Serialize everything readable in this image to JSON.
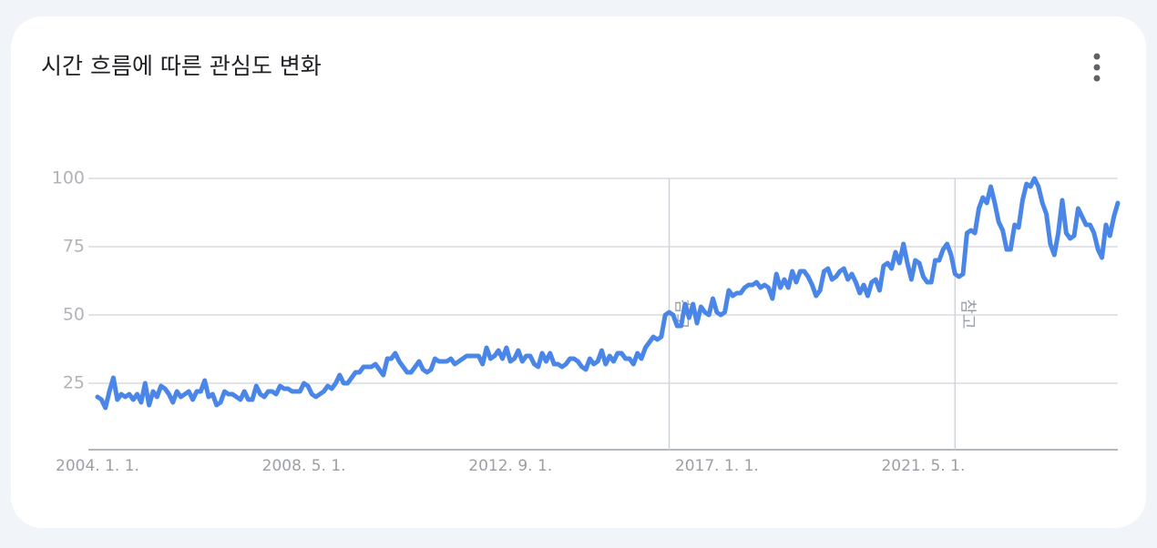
{
  "chart_data": {
    "type": "line",
    "title": "시간 흐름에 따른 관심도 변화",
    "categories": [
      "2004. 1. 1.",
      null,
      null,
      null,
      null,
      null,
      null,
      null,
      null,
      null,
      null,
      null,
      null,
      null,
      null,
      null,
      null,
      null,
      null,
      null,
      null,
      null,
      null,
      null,
      null,
      null,
      null,
      null,
      null,
      null,
      null,
      null,
      null,
      null,
      null,
      null,
      null,
      null,
      null,
      null,
      null,
      null,
      null,
      null,
      null,
      null,
      null,
      null,
      null,
      null,
      null,
      null,
      "2008. 5. 1.",
      null,
      null,
      null,
      null,
      null,
      null,
      null,
      null,
      null,
      null,
      null,
      null,
      null,
      null,
      null,
      null,
      null,
      null,
      null,
      null,
      null,
      null,
      null,
      null,
      null,
      null,
      null,
      null,
      null,
      null,
      null,
      null,
      null,
      null,
      null,
      null,
      null,
      null,
      null,
      null,
      null,
      null,
      null,
      null,
      null,
      null,
      null,
      null,
      null,
      null,
      null,
      "2012. 9. 1.",
      null,
      null,
      null,
      null,
      null,
      null,
      null,
      null,
      null,
      null,
      null,
      null,
      null,
      null,
      null,
      null,
      null,
      null,
      null,
      null,
      null,
      null,
      null,
      null,
      null,
      null,
      null,
      null,
      null,
      null,
      null,
      null,
      null,
      null,
      null,
      null,
      null,
      null,
      null,
      null,
      null,
      null,
      null,
      null,
      null,
      null,
      null,
      null,
      null,
      null,
      null,
      "2017. 1. 1.",
      null,
      null,
      null,
      null,
      null,
      null,
      null,
      null,
      null,
      null,
      null,
      null,
      null,
      null,
      null,
      null,
      null,
      null,
      null,
      null,
      null,
      null,
      null,
      null,
      null,
      null,
      null,
      null,
      null,
      null,
      null,
      null,
      null,
      null,
      null,
      null,
      null,
      null,
      null,
      null,
      null,
      null,
      null,
      null,
      null,
      null,
      null,
      null,
      null,
      null,
      null,
      "2021. 5. 1.",
      null,
      null,
      null,
      null,
      null,
      null,
      null,
      null,
      null,
      null,
      null,
      null,
      null,
      null,
      null,
      null,
      null,
      null,
      null,
      null,
      null,
      null,
      null,
      null,
      null,
      null,
      null,
      null,
      null,
      null,
      null,
      null,
      null,
      null,
      null,
      null,
      null,
      null,
      null,
      null,
      null,
      null,
      null,
      null,
      null,
      null,
      null,
      null,
      null
    ],
    "series": [
      {
        "name": "관심도",
        "color": "#4a86e8",
        "values": [
          20,
          19,
          16,
          22,
          27,
          19,
          21,
          20,
          21,
          19,
          21,
          18,
          25,
          17,
          22,
          20,
          24,
          23,
          21,
          18,
          22,
          20,
          21,
          22,
          19,
          22,
          22,
          26,
          20,
          21,
          17,
          18,
          22,
          21,
          21,
          20,
          19,
          22,
          19,
          19,
          24,
          21,
          20,
          22,
          22,
          21,
          24,
          23,
          23,
          22,
          22,
          22,
          25,
          24,
          21,
          20,
          21,
          22,
          24,
          23,
          25,
          28,
          25,
          25,
          27,
          29,
          29,
          31,
          31,
          31,
          32,
          30,
          28,
          34,
          34,
          36,
          33,
          31,
          29,
          29,
          31,
          33,
          30,
          29,
          30,
          34,
          33,
          33,
          33,
          34,
          32,
          33,
          34,
          35,
          35,
          35,
          35,
          32,
          38,
          34,
          35,
          37,
          34,
          38,
          33,
          34,
          37,
          33,
          35,
          35,
          32,
          31,
          36,
          33,
          36,
          32,
          32,
          31,
          32,
          34,
          34,
          33,
          31,
          30,
          34,
          32,
          33,
          37,
          32,
          35,
          33,
          36,
          36,
          34,
          34,
          32,
          36,
          34,
          38,
          40,
          42,
          41,
          42,
          50,
          51,
          50,
          46,
          46,
          54,
          49,
          54,
          47,
          53,
          51,
          50,
          56,
          51,
          50,
          51,
          59,
          57,
          58,
          58,
          60,
          61,
          61,
          62,
          60,
          61,
          60,
          56,
          65,
          60,
          63,
          60,
          66,
          62,
          66,
          66,
          64,
          61,
          57,
          59,
          66,
          67,
          63,
          64,
          66,
          67,
          63,
          65,
          62,
          58,
          61,
          57,
          62,
          63,
          59,
          68,
          69,
          67,
          73,
          69,
          76,
          69,
          63,
          70,
          69,
          64,
          62,
          62,
          70,
          70,
          74,
          76,
          72,
          65,
          64,
          65,
          80,
          81,
          80,
          89,
          93,
          91,
          97,
          91,
          84,
          81,
          74,
          74,
          83,
          82,
          92,
          98,
          97,
          100,
          97,
          91,
          87,
          76,
          72,
          80,
          92,
          80,
          78,
          79,
          89,
          86,
          83,
          83,
          80,
          74,
          71,
          83,
          79,
          86,
          91
        ]
      }
    ],
    "ylim": [
      0,
      100
    ],
    "yticks": [
      25,
      50,
      75,
      100
    ],
    "grid": true,
    "annotations": [
      {
        "index": 144,
        "label": "참고"
      },
      {
        "index": 216,
        "label": "참고"
      }
    ]
  }
}
